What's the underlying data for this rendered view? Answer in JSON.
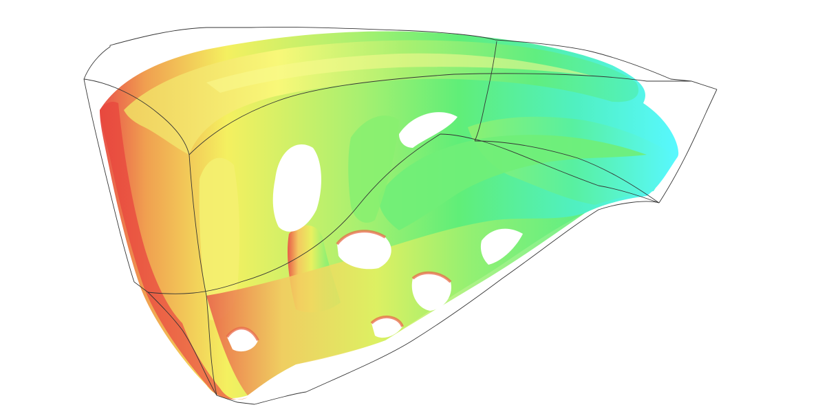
{
  "scene": {
    "background": "#ffffff",
    "render_type": "3d-isosurface",
    "wireframe_color": "#333333",
    "colormap": [
      "#e8504a",
      "#f0a050",
      "#f4f060",
      "#a8f070",
      "#60ee78",
      "#50f0c0",
      "#58f8ff"
    ]
  }
}
